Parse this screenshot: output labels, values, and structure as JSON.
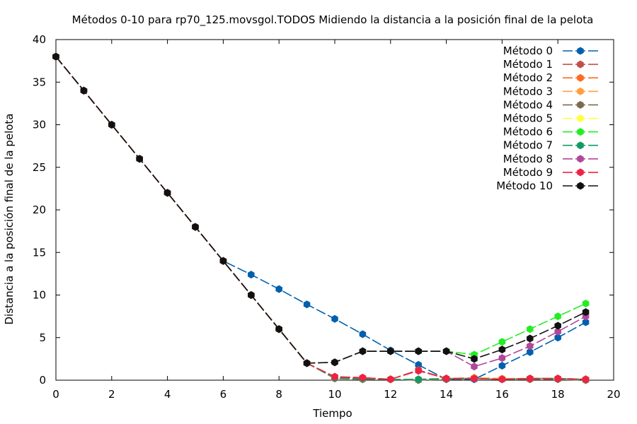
{
  "chart_data": {
    "type": "line",
    "title": "Métodos 0-10 para rp70_125.movsgol.TODOS Midiendo la distancia a la posición final de la pelota",
    "xlabel": "Tiempo",
    "ylabel": "Distancia a la posición final de la pelota",
    "xlim": [
      0,
      20
    ],
    "ylim": [
      0,
      40
    ],
    "xticks": [
      0,
      2,
      4,
      6,
      8,
      10,
      12,
      14,
      16,
      18,
      20
    ],
    "yticks": [
      0,
      5,
      10,
      15,
      20,
      25,
      30,
      35,
      40
    ],
    "grid": false,
    "legend": "top-right",
    "x": [
      0,
      1,
      2,
      3,
      4,
      5,
      6,
      7,
      8,
      9,
      10,
      11,
      12,
      13,
      14,
      15,
      16,
      17,
      18,
      19
    ],
    "series": [
      {
        "name": "Método 0",
        "color": "#0060ad",
        "values": [
          38,
          34,
          30,
          26,
          22,
          18,
          14,
          12.4,
          10.7,
          8.9,
          7.2,
          5.4,
          3.5,
          1.8,
          0.1,
          0.1,
          1.7,
          3.3,
          5.0,
          6.8
        ]
      },
      {
        "name": "Método 1",
        "color": "#c0504d",
        "values": [
          38,
          34,
          30,
          26,
          22,
          18,
          14,
          10,
          6,
          2,
          0.4,
          0.3,
          0.1,
          1.2,
          0.2,
          0.2,
          0.1,
          0.2,
          0.2,
          0.1
        ]
      },
      {
        "name": "Método 2",
        "color": "#ff6a1f",
        "values": [
          38,
          34,
          30,
          26,
          22,
          18,
          14,
          10,
          6,
          2,
          0.3,
          0.2,
          0.1,
          0.1,
          0.2,
          0.2,
          0.1,
          0.2,
          0.2,
          0.1
        ]
      },
      {
        "name": "Método 3",
        "color": "#ffa040",
        "values": [
          38,
          34,
          30,
          26,
          22,
          18,
          14,
          10,
          6,
          2,
          0.3,
          0.2,
          0.1,
          0.1,
          0.2,
          0.3,
          0.2,
          0.2,
          0.2,
          0.1
        ]
      },
      {
        "name": "Método 4",
        "color": "#7a6a50",
        "values": [
          38,
          34,
          30,
          26,
          22,
          18,
          14,
          10,
          6,
          2,
          0.2,
          0.1,
          0.1,
          0.0,
          0.1,
          0.2,
          0.1,
          0.1,
          0.1,
          0.0
        ]
      },
      {
        "name": "Método 5",
        "color": "#ffff40",
        "values": [
          38,
          34,
          30,
          26,
          22,
          18,
          14,
          10,
          6,
          2,
          0.3,
          0.2,
          0.1,
          0.1,
          0.2,
          0.2,
          0.1,
          0.2,
          0.2,
          0.1
        ]
      },
      {
        "name": "Método 6",
        "color": "#22ee22",
        "values": [
          38,
          34,
          30,
          26,
          22,
          18,
          14,
          10,
          6,
          2,
          2.1,
          3.4,
          3.4,
          3.4,
          3.4,
          3.0,
          4.5,
          6.0,
          7.5,
          9.0
        ]
      },
      {
        "name": "Método 7",
        "color": "#119966",
        "values": [
          38,
          34,
          30,
          26,
          22,
          18,
          14,
          10,
          6,
          2,
          0.3,
          0.2,
          0.1,
          0.1,
          0.2,
          0.2,
          0.1,
          0.2,
          0.2,
          0.1
        ]
      },
      {
        "name": "Método 8",
        "color": "#b0479a",
        "values": [
          38,
          34,
          30,
          26,
          22,
          18,
          14,
          10,
          6,
          2,
          2.1,
          3.4,
          3.4,
          3.4,
          3.4,
          1.6,
          2.6,
          4.0,
          5.7,
          7.5
        ]
      },
      {
        "name": "Método 9",
        "color": "#ee2244",
        "values": [
          38,
          34,
          30,
          26,
          22,
          18,
          14,
          10,
          6,
          2,
          0.4,
          0.3,
          0.1,
          1.1,
          0.2,
          0.2,
          0.1,
          0.2,
          0.2,
          0.1
        ]
      },
      {
        "name": "Método 10",
        "color": "#111111",
        "values": [
          38,
          34,
          30,
          26,
          22,
          18,
          14,
          10,
          6,
          2,
          2.1,
          3.4,
          3.4,
          3.4,
          3.4,
          2.5,
          3.6,
          4.9,
          6.4,
          8.0
        ]
      }
    ]
  }
}
